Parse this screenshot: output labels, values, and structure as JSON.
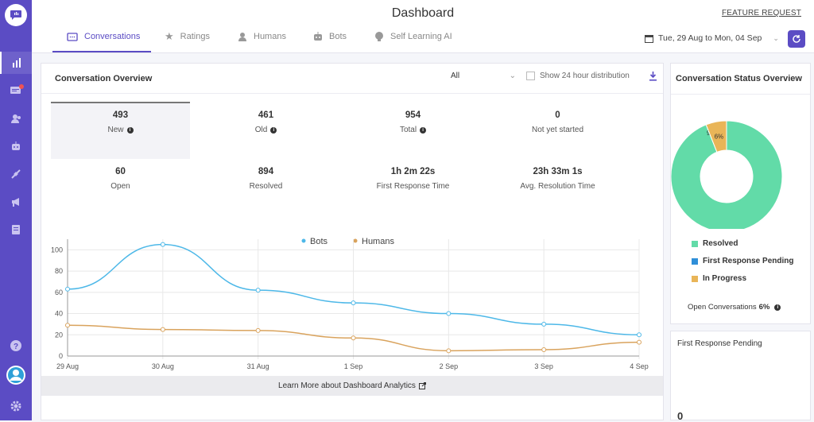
{
  "header": {
    "title": "Dashboard",
    "feature_request": "FEATURE REQUEST",
    "date_range": "Tue, 29 Aug to Mon, 04 Sep"
  },
  "tabs": [
    {
      "label": "Conversations"
    },
    {
      "label": "Ratings"
    },
    {
      "label": "Humans"
    },
    {
      "label": "Bots"
    },
    {
      "label": "Self Learning AI"
    }
  ],
  "overview": {
    "title": "Conversation Overview",
    "filter": "All",
    "show24": "Show 24 hour distribution",
    "stats": [
      {
        "value": "493",
        "label": "New"
      },
      {
        "value": "461",
        "label": "Old"
      },
      {
        "value": "954",
        "label": "Total"
      },
      {
        "value": "0",
        "label": "Not yet started"
      },
      {
        "value": "60",
        "label": "Open"
      },
      {
        "value": "894",
        "label": "Resolved"
      },
      {
        "value": "1h 2m 22s",
        "label": "First Response Time"
      },
      {
        "value": "23h 33m 1s",
        "label": "Avg. Resolution Time"
      }
    ],
    "learn_more": "Learn More about Dashboard Analytics"
  },
  "status": {
    "title": "Conversation Status Overview",
    "legend": [
      {
        "label": "Resolved",
        "color": "#62dba8"
      },
      {
        "label": "First Response Pending",
        "color": "#2f8fd8"
      },
      {
        "label": "In Progress",
        "color": "#e9b558"
      }
    ],
    "open_label": "Open Conversations",
    "open_value": "6%"
  },
  "frp": {
    "title": "First Response Pending",
    "value": "0"
  },
  "colors": {
    "accent": "#5b4cc4",
    "bots": "#4db8e8",
    "humans": "#d9a35d"
  },
  "chart_data": {
    "type": "line",
    "categories": [
      "29 Aug",
      "30 Aug",
      "31 Aug",
      "1 Sep",
      "2 Sep",
      "3 Sep",
      "4 Sep"
    ],
    "series": [
      {
        "name": "Bots",
        "values": [
          63,
          105,
          62,
          50,
          40,
          30,
          20
        ]
      },
      {
        "name": "Humans",
        "values": [
          29,
          25,
          24,
          17,
          5,
          6,
          13
        ]
      }
    ],
    "ylim": [
      0,
      110
    ],
    "yticks": [
      0,
      20,
      40,
      60,
      80,
      100
    ],
    "grid": true,
    "legend": "top-center",
    "pie": {
      "type": "pie",
      "labels": [
        "Resolved",
        "First Response Pending",
        "In Progress"
      ],
      "values": [
        94,
        0,
        6
      ]
    }
  }
}
